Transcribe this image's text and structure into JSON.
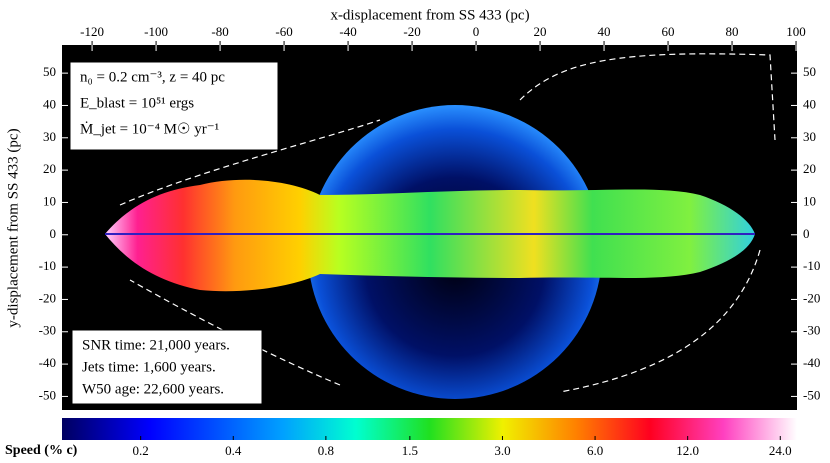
{
  "chart_data": {
    "type": "image",
    "xlabel": "x-displacement from SS 433 (pc)",
    "ylabel": "y-displacement from SS 433 (pc)",
    "xlim": [
      -129.4,
      100.3
    ],
    "ylim": [
      -54.2,
      58.7
    ],
    "xticks": [
      -120,
      -100,
      -80,
      -60,
      -40,
      -20,
      0,
      20,
      40,
      60,
      80,
      100
    ],
    "yticks": [
      -50,
      -40,
      -30,
      -20,
      -10,
      0,
      10,
      20,
      30,
      40,
      50
    ],
    "parameter_box": [
      "n₀ = 0.2 cm⁻³, z = 40 pc",
      "E_blast = 10⁵¹ ergs",
      "Ṁ_jet = 10⁻⁴ M☉ yr⁻¹"
    ],
    "time_box": [
      "SNR time: 21,000 years.",
      "Jets time: 1,600 years.",
      "W50 age: 22,600 years."
    ],
    "colorbar": {
      "label": "Speed (% c)",
      "log_scale": true,
      "clim": [
        0.111,
        27.2
      ],
      "ticks": [
        0.2,
        0.4,
        0.8,
        1.5,
        {
          "value": 3,
          "label": "3.0"
        },
        {
          "value": 6,
          "label": "6.0"
        },
        {
          "value": 12,
          "label": "12.0"
        },
        {
          "value": 24,
          "label": "24.0"
        }
      ]
    }
  }
}
